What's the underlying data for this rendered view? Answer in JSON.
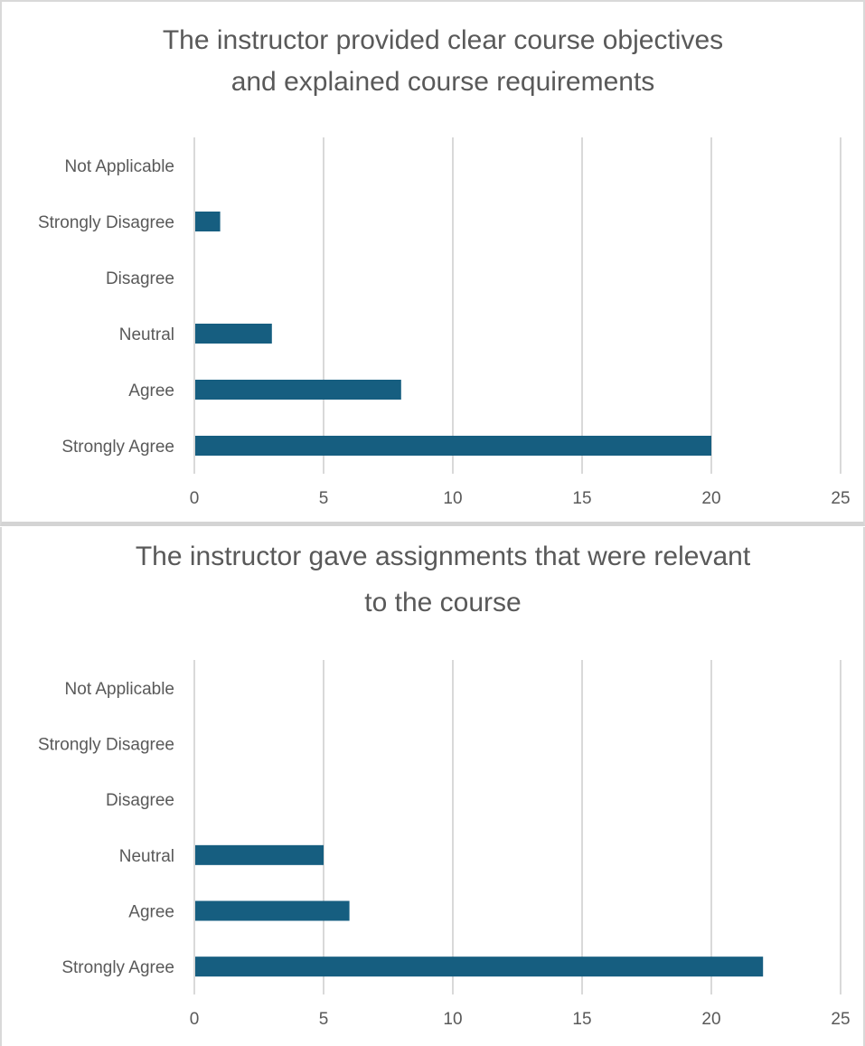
{
  "colors": {
    "bar": "#165e80",
    "text": "#595959",
    "grid": "#d9d9d9"
  },
  "chart_data": [
    {
      "type": "bar",
      "orientation": "horizontal",
      "title_lines": [
        "The instructor provided clear course objectives",
        "and explained course requirements"
      ],
      "categories": [
        "Strongly Agree",
        "Agree",
        "Neutral",
        "Disagree",
        "Strongly Disagree",
        "Not Applicable"
      ],
      "values": [
        20,
        8,
        3,
        0,
        1,
        0
      ],
      "xlim": [
        0,
        25
      ],
      "xticks": [
        0,
        5,
        10,
        15,
        20,
        25
      ],
      "grid": true,
      "legend": "none"
    },
    {
      "type": "bar",
      "orientation": "horizontal",
      "title_lines": [
        "The instructor gave assignments that were relevant",
        "to the course"
      ],
      "categories": [
        "Strongly Agree",
        "Agree",
        "Neutral",
        "Disagree",
        "Strongly Disagree",
        "Not Applicable"
      ],
      "values": [
        22,
        6,
        5,
        0,
        0,
        0
      ],
      "xlim": [
        0,
        25
      ],
      "xticks": [
        0,
        5,
        10,
        15,
        20,
        25
      ],
      "grid": true,
      "legend": "none"
    }
  ]
}
